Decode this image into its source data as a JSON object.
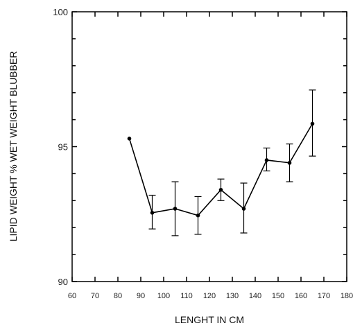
{
  "chart_data": {
    "type": "line",
    "title": "",
    "xlabel": "LENGHT IN CM",
    "ylabel": "LIPID WEIGHT % WET WEIGHT BLUBBER",
    "xlim": [
      60,
      180
    ],
    "ylim": [
      90,
      100
    ],
    "xticks": [
      60,
      70,
      80,
      90,
      100,
      110,
      120,
      130,
      140,
      150,
      160,
      170,
      180
    ],
    "yticks": [
      90,
      95,
      100
    ],
    "grid": false,
    "legend": "none",
    "series": [
      {
        "x": [
          85,
          95,
          105,
          115,
          125,
          135,
          145,
          155,
          165
        ],
        "values": [
          95.3,
          92.55,
          92.7,
          92.45,
          93.4,
          92.7,
          94.5,
          94.4,
          95.85
        ],
        "error_low": [
          null,
          91.95,
          91.7,
          91.75,
          93.0,
          91.8,
          94.1,
          93.7,
          94.65
        ],
        "error_high": [
          null,
          93.2,
          93.7,
          93.15,
          93.8,
          93.65,
          94.95,
          95.1,
          97.1
        ]
      }
    ],
    "colors": {
      "line": "#000000",
      "axis": "#000000"
    }
  }
}
